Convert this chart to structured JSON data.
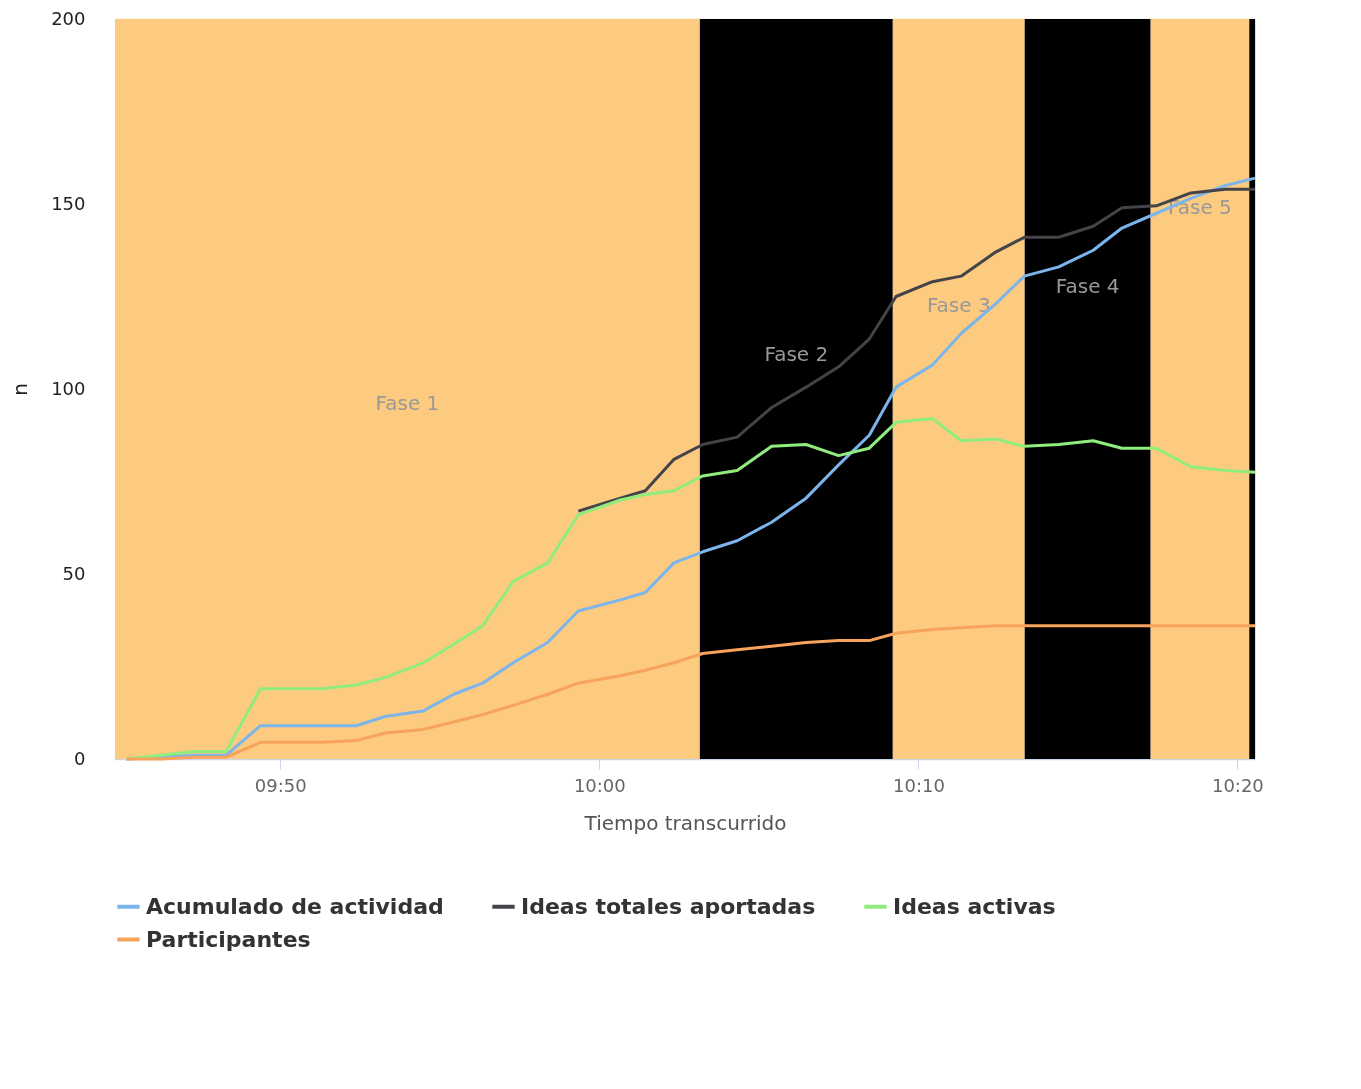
{
  "chart_data": {
    "type": "line",
    "xlabel": "Tiempo transcurrido",
    "ylabel": "n",
    "x": [
      9.753,
      9.771,
      9.788,
      9.805,
      9.823,
      9.855,
      9.873,
      9.888,
      9.908,
      9.924,
      9.939,
      9.955,
      9.973,
      9.989,
      10.011,
      10.024,
      10.039,
      10.054,
      10.072,
      10.09,
      10.108,
      10.125,
      10.141,
      10.155,
      10.174,
      10.189,
      10.207,
      10.222,
      10.24,
      10.258,
      10.273,
      10.291,
      10.309,
      10.327,
      10.3425
    ],
    "series": [
      {
        "name": "Acumulado de actividad",
        "color": "#7cb5ec",
        "values": [
          0,
          0.5,
          1,
          1,
          9,
          9,
          9,
          11.5,
          13,
          17.5,
          20.5,
          26,
          31.5,
          40,
          43,
          45,
          53,
          56,
          59,
          64,
          70.5,
          79.5,
          87.5,
          100.5,
          106.5,
          115,
          123,
          130.5,
          133,
          137.5,
          143.5,
          147.5,
          151.5,
          155,
          157
        ]
      },
      {
        "name": "Ideas totales aportadas",
        "color": "#434348",
        "values": [
          null,
          null,
          null,
          null,
          null,
          null,
          null,
          null,
          null,
          null,
          null,
          null,
          null,
          67,
          70.5,
          72.5,
          81,
          85,
          87,
          95,
          100.5,
          106,
          113.5,
          125,
          129,
          130.5,
          137,
          141,
          141,
          144,
          149,
          149.5,
          153,
          154,
          154
        ]
      },
      {
        "name": "Ideas activas",
        "color": "#90ed7d",
        "values": [
          0,
          1,
          2,
          2,
          19,
          19,
          20,
          22,
          26,
          31,
          36,
          48,
          53,
          66,
          70,
          71.5,
          72.5,
          76.5,
          78,
          84.5,
          85,
          82,
          84,
          91,
          92,
          86,
          86.5,
          84.5,
          85,
          86,
          84,
          84,
          79,
          78,
          77.5
        ]
      },
      {
        "name": "Participantes",
        "color": "#f7a35c",
        "values": [
          0,
          0,
          0.5,
          0.5,
          4.5,
          4.5,
          5,
          7,
          8,
          10,
          12,
          14.5,
          17.5,
          20.5,
          22.5,
          24,
          26,
          28.5,
          29.5,
          30.5,
          31.5,
          32,
          32,
          34,
          35,
          35.5,
          36,
          36,
          36,
          36,
          36,
          36,
          36,
          36,
          36
        ]
      }
    ],
    "xlim": [
      9.747,
      10.3425
    ],
    "ylim": [
      0,
      200
    ],
    "xticks": [
      {
        "value": 9.8333,
        "label": "09:50"
      },
      {
        "value": 10.0,
        "label": "10:00"
      },
      {
        "value": 10.1667,
        "label": "10:10"
      },
      {
        "value": 10.3333,
        "label": "10:20"
      }
    ],
    "yticks": [
      0,
      50,
      100,
      150,
      200
    ],
    "bands": [
      {
        "axis": "x",
        "from": 9.747,
        "to": 10.0525,
        "label": "Fase 1",
        "color": "#fccb80"
      },
      {
        "axis": "x",
        "from": 10.0525,
        "to": 10.1533,
        "label": "Fase 2",
        "color": "#000000"
      },
      {
        "axis": "x",
        "from": 10.1533,
        "to": 10.2222,
        "label": "Fase 3",
        "color": "#fccb80"
      },
      {
        "axis": "x",
        "from": 10.2222,
        "to": 10.288,
        "label": "Fase 4",
        "color": "#000000"
      },
      {
        "axis": "x",
        "from": 10.288,
        "to": 10.3395,
        "label": "Fase 5",
        "color": "#fccb80"
      },
      {
        "axis": "x",
        "from": 10.3395,
        "to": 10.3425,
        "color": "#000000"
      }
    ],
    "grid": "y",
    "legend": "bottom",
    "marker": "none",
    "line_style": "solid"
  }
}
